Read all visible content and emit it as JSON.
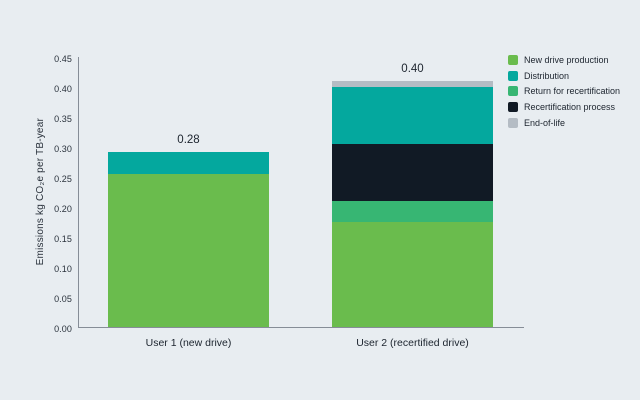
{
  "background_color": "#e8edf1",
  "text_color": "#1c242e",
  "axis_color": "#868d97",
  "chart_data": {
    "type": "bar",
    "subtype": "stacked-bar",
    "title": "",
    "xlabel": "",
    "ylabel": "Emissions kg CO₂e per TB-year",
    "ylim": [
      0,
      0.45
    ],
    "ytick_step": 0.05,
    "yticks": [
      "0.00",
      "0.05",
      "0.10",
      "0.15",
      "0.20",
      "0.25",
      "0.30",
      "0.35",
      "0.40",
      "0.45"
    ],
    "grid": "off",
    "legend_position": "top-right",
    "categories": [
      "User 1 (new drive)",
      "User 2 (recertified drive)"
    ],
    "total_labels": [
      "0.28",
      "0.40"
    ],
    "series": [
      {
        "name": "New drive production",
        "color": "#6abc4d",
        "values": [
          0.255,
          0.175
        ]
      },
      {
        "name": "Distribution",
        "color": "#04a89e",
        "values": [
          0.036,
          0.095
        ]
      },
      {
        "name": "Return for recertification",
        "color": "#37b673",
        "values": [
          0,
          0.035
        ]
      },
      {
        "name": "Recertification process",
        "color": "#111a25",
        "values": [
          0,
          0.095
        ]
      },
      {
        "name": "End-of-life",
        "color": "#b4bcc4",
        "values": [
          0,
          0.01
        ]
      }
    ],
    "stack_order": [
      0,
      2,
      3,
      1,
      4
    ],
    "legend_order": [
      0,
      1,
      2,
      3,
      4
    ]
  }
}
